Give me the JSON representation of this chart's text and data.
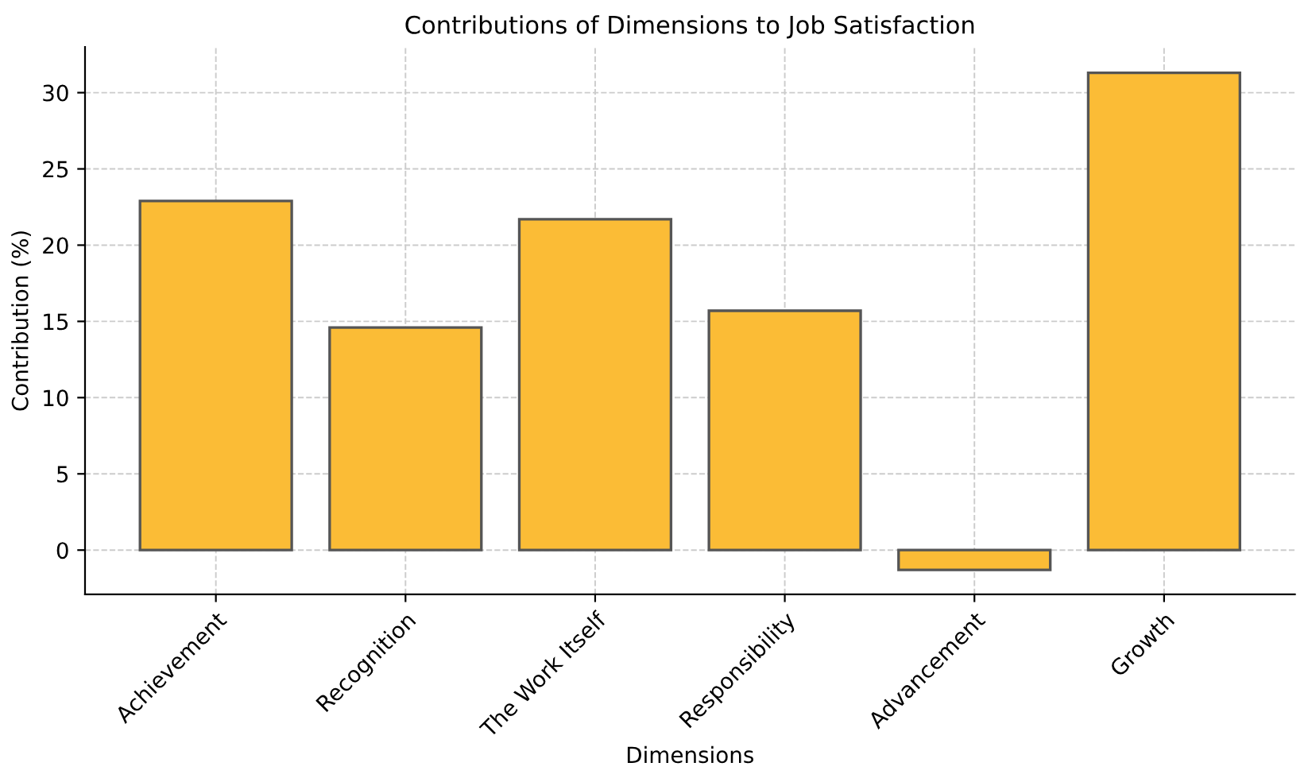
{
  "chart_data": {
    "type": "bar",
    "title": "Contributions of Dimensions to Job Satisfaction",
    "xlabel": "Dimensions",
    "ylabel": "Contribution (%)",
    "categories": [
      "Achievement",
      "Recognition",
      "The Work Itself",
      "Responsibility",
      "Advancement",
      "Growth"
    ],
    "values": [
      22.9,
      14.6,
      21.7,
      15.7,
      -1.3,
      31.3
    ],
    "color": "#fbbc36",
    "ylim": [
      -2.9,
      33
    ],
    "yticks": [
      0,
      5,
      10,
      15,
      20,
      25,
      30
    ],
    "grid": true
  }
}
